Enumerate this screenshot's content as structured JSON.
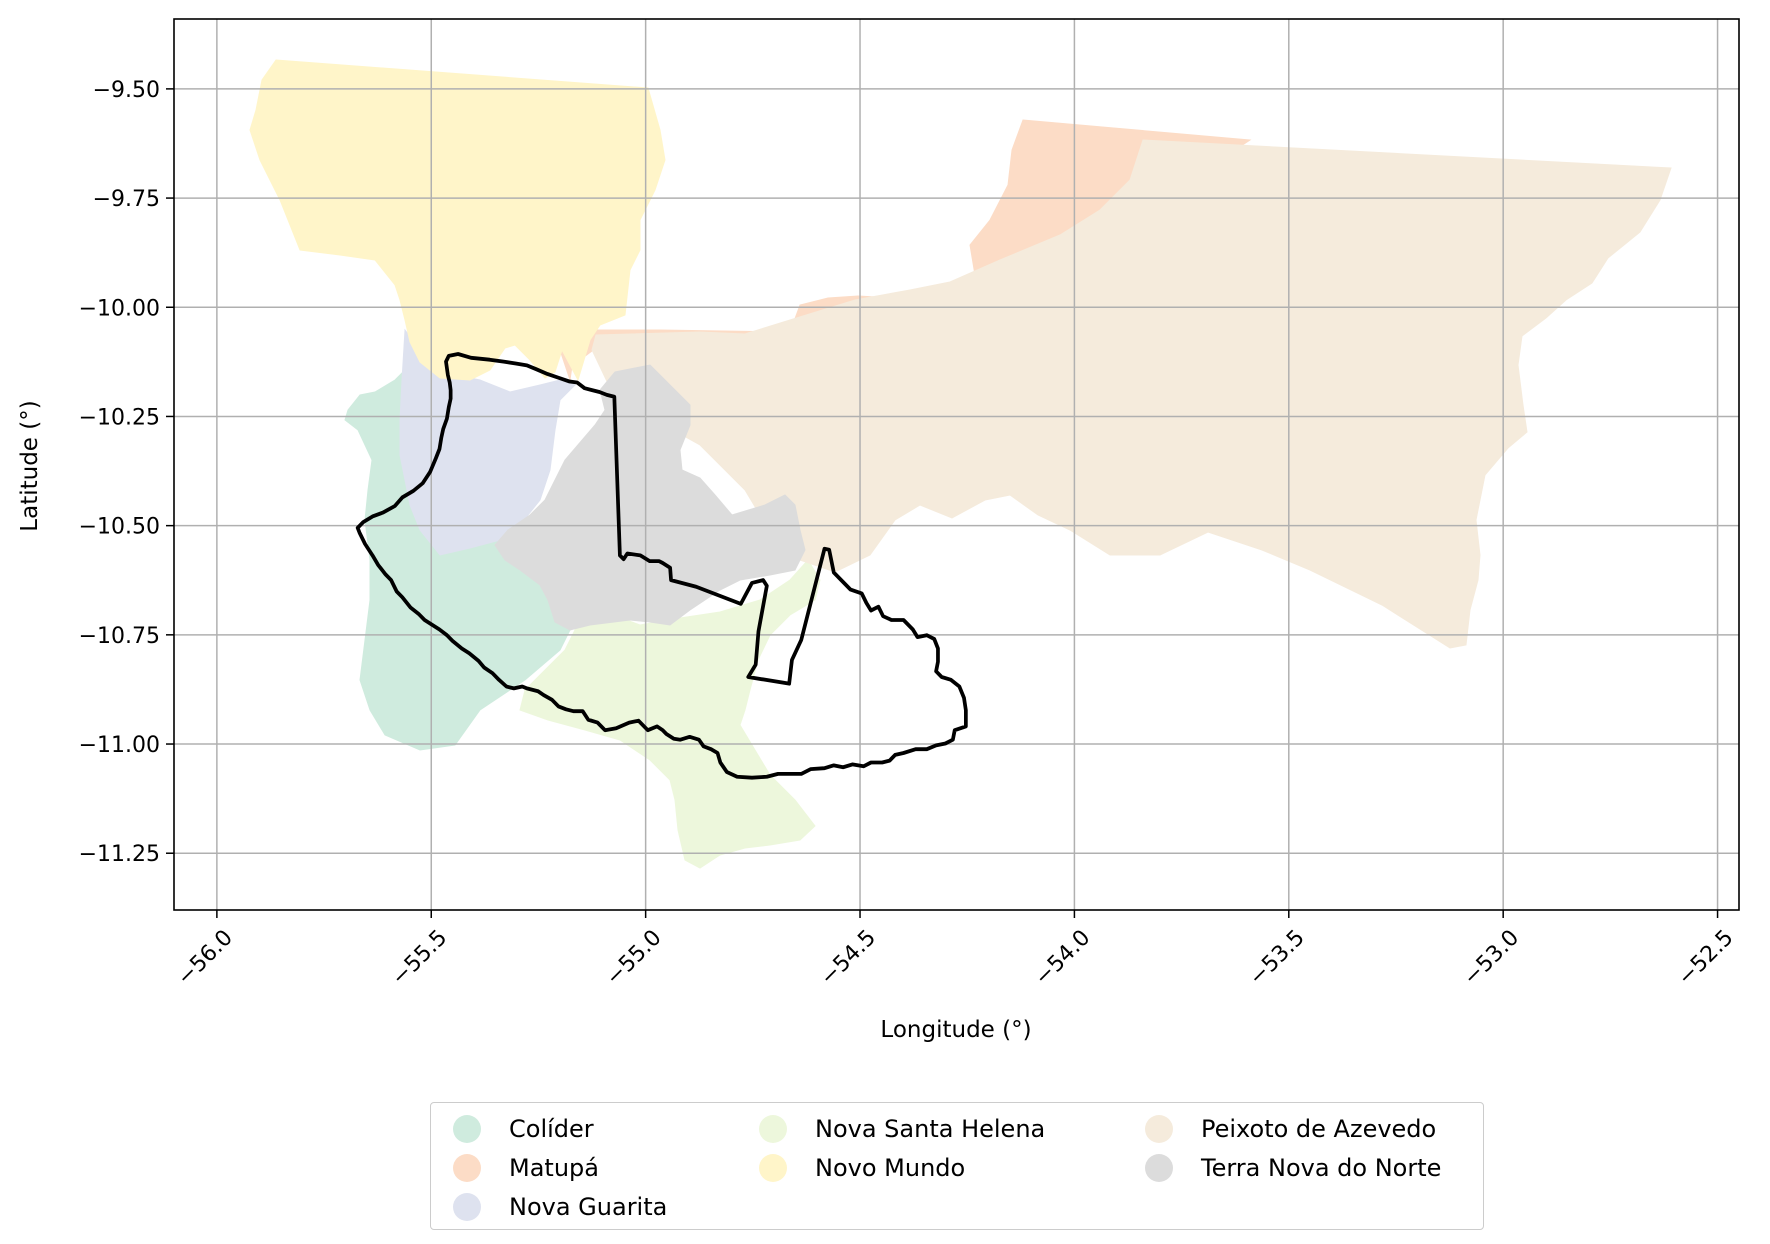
{
  "chart_data": {
    "type": "map",
    "xlabel": "Longitude (°)",
    "ylabel": "Latitude (°)",
    "xlim": [
      -56.1,
      -52.45
    ],
    "ylim": [
      -11.38,
      -9.34
    ],
    "x_ticks": [
      "−56.0",
      "−55.5",
      "−55.0",
      "−54.5",
      "−54.0",
      "−53.5",
      "−53.0",
      "−52.5"
    ],
    "y_ticks": [
      "−9.50",
      "−9.75",
      "−10.00",
      "−10.25",
      "−10.50",
      "−10.75",
      "−11.00",
      "−11.25"
    ],
    "grid": true,
    "highlighted_region": "Terra Nova do Norte",
    "highlight_outline_color": "#000000",
    "legend_position": "bottom-center",
    "regions": [
      {
        "name": "Colíder",
        "color": "#cfebde"
      },
      {
        "name": "Matupá",
        "color": "#fcdcc6"
      },
      {
        "name": "Nova Guarita",
        "color": "#dee2ef"
      },
      {
        "name": "Nova Santa Helena",
        "color": "#edf7dc"
      },
      {
        "name": "Novo Mundo",
        "color": "#fff5c9"
      },
      {
        "name": "Peixoto de Azevedo",
        "color": "#f5ebdc"
      },
      {
        "name": "Terra Nova do Norte",
        "color": "#dcdcdc"
      }
    ]
  }
}
